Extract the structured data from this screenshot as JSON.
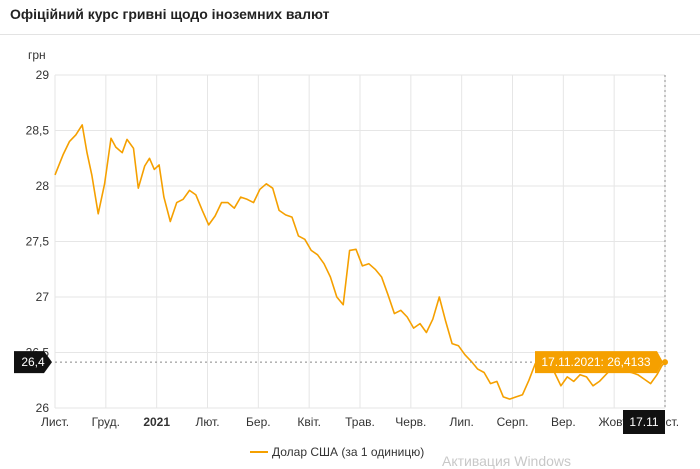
{
  "header": {
    "title": "Офіційний курс гривні щодо іноземних валют"
  },
  "watermark": "Активация Windows",
  "chart_data": {
    "type": "line",
    "ylabel": "грн",
    "ylim": [
      26,
      29
    ],
    "y_ticks": [
      "29",
      "28,5",
      "28",
      "27,5",
      "27",
      "26,5",
      "26"
    ],
    "x_ticks": [
      "Лист.",
      "Груд.",
      "2021",
      "Лют.",
      "Бер.",
      "Квіт.",
      "Трав.",
      "Черв.",
      "Лип.",
      "Серп.",
      "Вер.",
      "Жовт.",
      "Лист."
    ],
    "grid": true,
    "legend_position": "bottom",
    "series": [
      {
        "name": "Долар США (за 1 одиницю)",
        "color": "#f5a000",
        "x": [
          "2020-11-01",
          "2020-11-06",
          "2020-11-10",
          "2020-11-14",
          "2020-11-18",
          "2020-11-21",
          "2020-11-24",
          "2020-11-28",
          "2020-12-02",
          "2020-12-06",
          "2020-12-09",
          "2020-12-13",
          "2020-12-16",
          "2020-12-20",
          "2020-12-23",
          "2020-12-27",
          "2020-12-30",
          "2021-01-02",
          "2021-01-05",
          "2021-01-08",
          "2021-01-12",
          "2021-01-16",
          "2021-01-20",
          "2021-01-24",
          "2021-01-28",
          "2021-02-01",
          "2021-02-05",
          "2021-02-09",
          "2021-02-13",
          "2021-02-17",
          "2021-02-21",
          "2021-02-25",
          "2021-03-01",
          "2021-03-05",
          "2021-03-09",
          "2021-03-13",
          "2021-03-17",
          "2021-03-21",
          "2021-03-25",
          "2021-03-29",
          "2021-04-02",
          "2021-04-06",
          "2021-04-10",
          "2021-04-14",
          "2021-04-18",
          "2021-04-22",
          "2021-04-26",
          "2021-04-30",
          "2021-05-04",
          "2021-05-08",
          "2021-05-12",
          "2021-05-16",
          "2021-05-20",
          "2021-05-24",
          "2021-05-28",
          "2021-06-01",
          "2021-06-05",
          "2021-06-09",
          "2021-06-13",
          "2021-06-17",
          "2021-06-21",
          "2021-06-25",
          "2021-06-29",
          "2021-07-03",
          "2021-07-07",
          "2021-07-11",
          "2021-07-15",
          "2021-07-19",
          "2021-07-23",
          "2021-07-27",
          "2021-07-31",
          "2021-08-04",
          "2021-08-08",
          "2021-08-12",
          "2021-08-16",
          "2021-08-20",
          "2021-08-24",
          "2021-08-28",
          "2021-09-01",
          "2021-09-05",
          "2021-09-09",
          "2021-09-13",
          "2021-09-17",
          "2021-09-21",
          "2021-09-25",
          "2021-09-29",
          "2021-10-03",
          "2021-10-07",
          "2021-10-11",
          "2021-10-15",
          "2021-10-19",
          "2021-10-23",
          "2021-10-27",
          "2021-10-31",
          "2021-11-04",
          "2021-11-08",
          "2021-11-12",
          "2021-11-15",
          "2021-11-17"
        ],
        "values": [
          28.1,
          28.28,
          28.4,
          28.46,
          28.55,
          28.3,
          28.1,
          27.75,
          28.02,
          28.43,
          28.35,
          28.3,
          28.42,
          28.34,
          27.98,
          28.18,
          28.25,
          28.15,
          28.19,
          27.9,
          27.68,
          27.85,
          27.88,
          27.96,
          27.92,
          27.78,
          27.65,
          27.73,
          27.85,
          27.85,
          27.8,
          27.9,
          27.88,
          27.85,
          27.97,
          28.02,
          27.98,
          27.78,
          27.74,
          27.72,
          27.55,
          27.52,
          27.42,
          27.38,
          27.3,
          27.18,
          27.0,
          26.93,
          27.42,
          27.43,
          27.28,
          27.3,
          27.25,
          27.18,
          27.02,
          26.85,
          26.88,
          26.82,
          26.72,
          26.76,
          26.68,
          26.8,
          27.0,
          26.78,
          26.58,
          26.56,
          26.48,
          26.42,
          26.35,
          26.32,
          26.22,
          26.24,
          26.1,
          26.08,
          26.1,
          26.12,
          26.25,
          26.4,
          26.35,
          26.36,
          26.32,
          26.2,
          26.28,
          26.24,
          26.3,
          26.28,
          26.2,
          26.24,
          26.3,
          26.36,
          26.34,
          26.33,
          26.32,
          26.3,
          26.26,
          26.22,
          26.3,
          26.38,
          26.4133
        ]
      }
    ],
    "crosshair": {
      "y_label": "26,4",
      "x_label": "17.11",
      "tooltip": "17.11.2021: 26,4133"
    }
  }
}
